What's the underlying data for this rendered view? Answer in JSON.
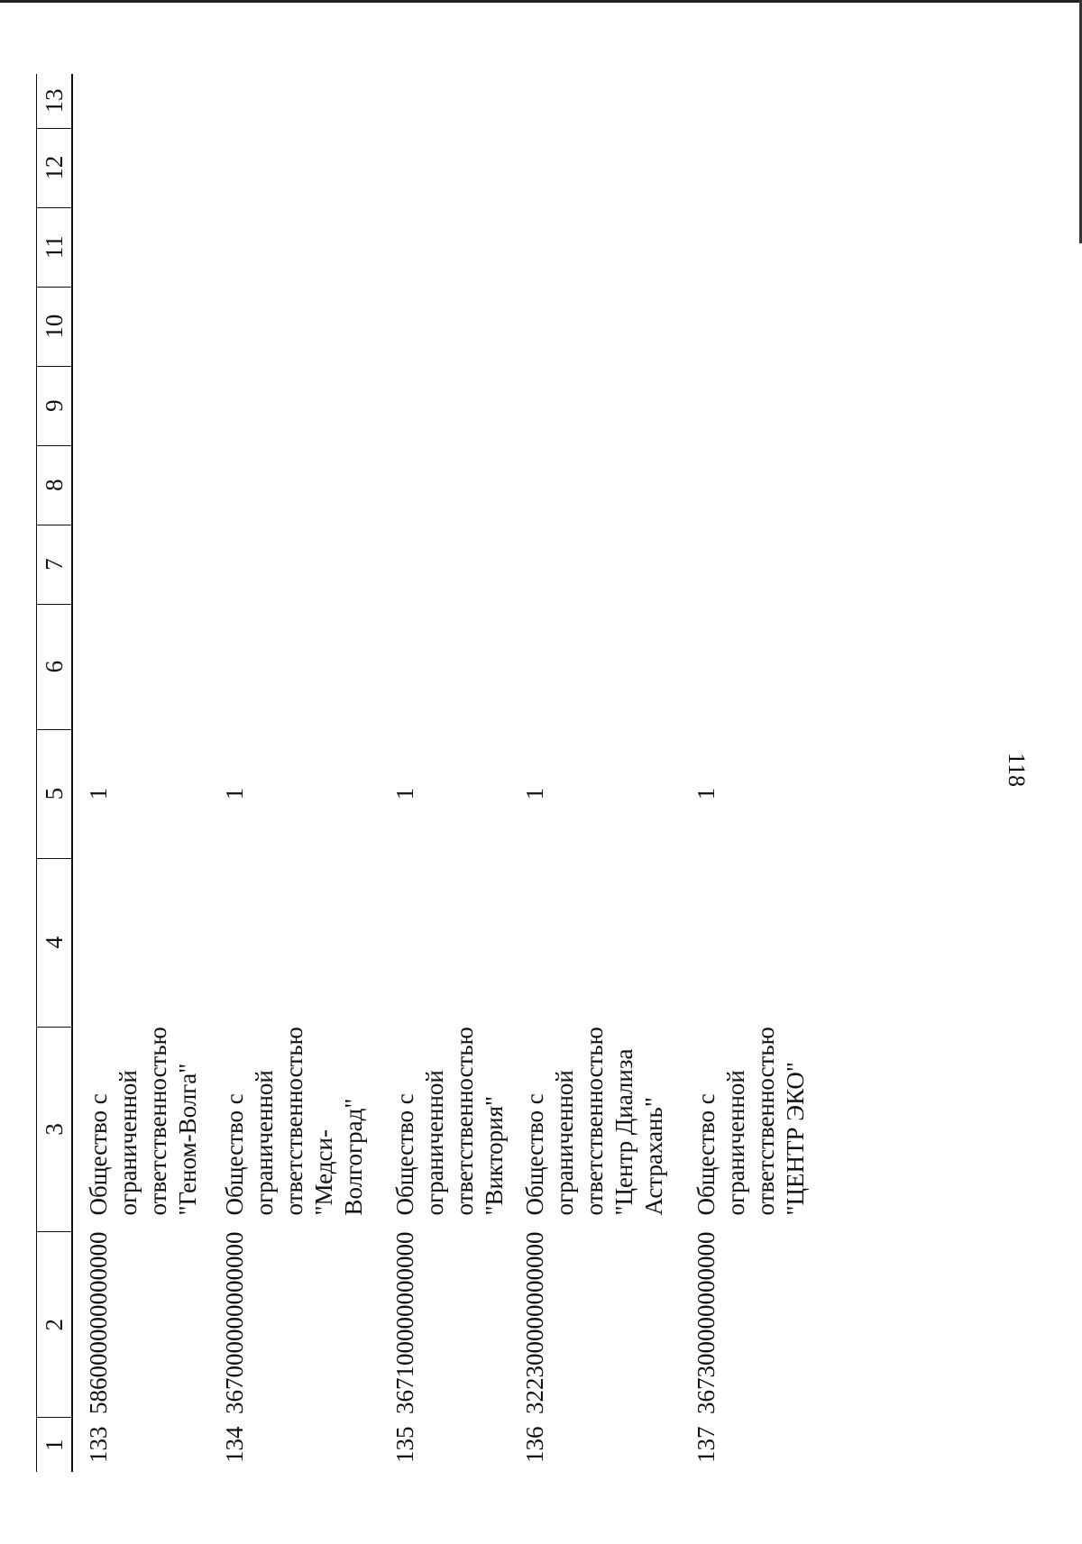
{
  "page_number": "118",
  "table": {
    "headers": [
      "1",
      "2",
      "3",
      "4",
      "5",
      "6",
      "7",
      "8",
      "9",
      "10",
      "11",
      "12",
      "13"
    ],
    "rows": [
      {
        "num": "133",
        "code": "586000000000000",
        "name": "Общество с ограниченной ответственностью \"Геном-Волга\"",
        "col5": "1"
      },
      {
        "num": "134",
        "code": "367000000000000",
        "name": "Общество с ограниченной ответственностью \"Медси-Волгоград\"",
        "col5": "1"
      },
      {
        "num": "135",
        "code": "367100000000000",
        "name": "Общество с ограниченной ответственностью \"Виктория\"",
        "col5": "1"
      },
      {
        "num": "136",
        "code": "322300000000000",
        "name": "Общество с ограниченной ответственностью \"Центр Диализа Астрахань\"",
        "col5": "1"
      },
      {
        "num": "137",
        "code": "367300000000000",
        "name": "Общество с ограниченной ответственностью \"ЦЕНТР ЭКО\"",
        "col5": "1"
      }
    ]
  }
}
